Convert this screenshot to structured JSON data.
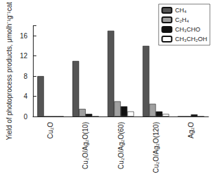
{
  "chart_data": {
    "type": "bar",
    "categories": [
      "Cu₂O",
      "Cu₂O/Ag₂O(10)",
      "Cu₂O/Ag₂O(60)",
      "Cu₂O/Ag₂O(120)",
      "Ag₂O"
    ],
    "series": [
      {
        "name": "CH₄",
        "color": "#555555",
        "values": [
          8,
          11,
          17,
          14,
          0
        ]
      },
      {
        "name": "C₂H₄",
        "color": "#a0a0a0",
        "values": [
          0,
          1.5,
          3,
          2.5,
          0
        ]
      },
      {
        "name": "CH₃CHO",
        "color": "#111111",
        "values": [
          0,
          0.5,
          2,
          1,
          0.4
        ]
      },
      {
        "name": "CH₃CH₂OH",
        "color": "#ffffff",
        "values": [
          0,
          0,
          1,
          0.5,
          0
        ]
      }
    ],
    "ylabel": "Yield of photoprocess products, μmolh⁻¹g⁻¹cat",
    "ylim": [
      0,
      18
    ],
    "yticks": [
      0,
      4,
      8,
      12,
      16
    ],
    "grid": false,
    "legend": "upper right"
  }
}
